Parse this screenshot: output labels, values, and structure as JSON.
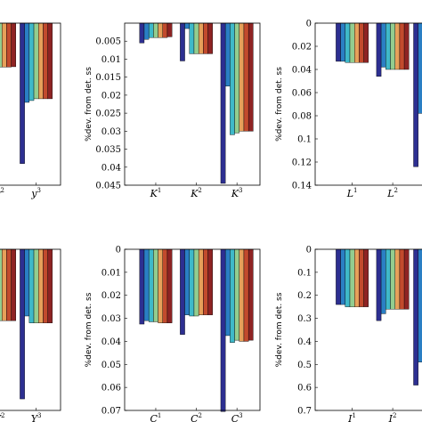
{
  "palette": [
    "#2d2f91",
    "#2a7fc4",
    "#3fb9c9",
    "#93cd8f",
    "#e6a05a",
    "#c24a2d",
    "#8e2323"
  ],
  "chart_data": [
    {
      "type": "bar",
      "axis_visible": false,
      "invert_y": true,
      "ylim": [
        0,
        0.045
      ],
      "ylabel": "",
      "categories": [
        {
          "base": "y",
          "sup": "2"
        },
        {
          "base": "y",
          "sup": "3"
        }
      ],
      "series": [
        {
          "values": [
            0.012,
            0.039
          ]
        },
        {
          "values": [
            0.012,
            0.022
          ]
        },
        {
          "values": [
            0.012,
            0.0215
          ]
        },
        {
          "values": [
            0.0122,
            0.021
          ]
        },
        {
          "values": [
            0.0122,
            0.021
          ]
        },
        {
          "values": [
            0.0122,
            0.021
          ]
        },
        {
          "values": [
            0.0121,
            0.021
          ]
        }
      ]
    },
    {
      "type": "bar",
      "invert_y": true,
      "ylim": [
        0,
        0.045
      ],
      "ylabel": "%dev. from det. ss",
      "yticks": [
        "0.005",
        "0.01",
        "0.015",
        "0.02",
        "0.025",
        "0.03",
        "0.035",
        "0.04",
        "0.045"
      ],
      "categories": [
        {
          "base": "K",
          "sup": "1"
        },
        {
          "base": "K",
          "sup": "2"
        },
        {
          "base": "K",
          "sup": "3"
        }
      ],
      "series": [
        {
          "values": [
            0.0055,
            0.0105,
            0.0445
          ]
        },
        {
          "values": [
            0.0045,
            0.0015,
            0.0175
          ]
        },
        {
          "values": [
            0.004,
            0.0085,
            0.031
          ]
        },
        {
          "values": [
            0.004,
            0.0085,
            0.0305
          ]
        },
        {
          "values": [
            0.004,
            0.0085,
            0.03
          ]
        },
        {
          "values": [
            0.004,
            0.0085,
            0.03
          ]
        },
        {
          "values": [
            0.0038,
            0.0085,
            0.03
          ]
        }
      ]
    },
    {
      "type": "bar",
      "invert_y": true,
      "ylim": [
        0,
        0.14
      ],
      "ylabel": "%dev. from det. ss",
      "yticks": [
        "0",
        "0.02",
        "0.04",
        "0.06",
        "0.08",
        "0.1",
        "0.12",
        "0.14"
      ],
      "categories": [
        {
          "base": "L",
          "sup": "1"
        },
        {
          "base": "L",
          "sup": "2"
        },
        {
          "base": "",
          "sup": ""
        }
      ],
      "series": [
        {
          "values": [
            0.033,
            0.046,
            0.124
          ]
        },
        {
          "values": [
            0.033,
            0.038,
            0.078
          ]
        },
        {
          "values": [
            0.034,
            0.04,
            0.078
          ]
        },
        {
          "values": [
            0.034,
            0.04,
            0.078
          ]
        },
        {
          "values": [
            0.034,
            0.04,
            0.078
          ]
        },
        {
          "values": [
            0.034,
            0.04,
            0.078
          ]
        },
        {
          "values": [
            0.034,
            0.04,
            0.078
          ]
        }
      ]
    },
    {
      "type": "bar",
      "axis_visible": false,
      "invert_y": true,
      "ylim": [
        0,
        0.07
      ],
      "ylabel": "",
      "categories": [
        {
          "base": "Y",
          "sup": "2"
        },
        {
          "base": "Y",
          "sup": "3"
        }
      ],
      "series": [
        {
          "values": [
            0.03,
            0.065
          ]
        },
        {
          "values": [
            0.03,
            0.029
          ]
        },
        {
          "values": [
            0.031,
            0.032
          ]
        },
        {
          "values": [
            0.031,
            0.032
          ]
        },
        {
          "values": [
            0.031,
            0.032
          ]
        },
        {
          "values": [
            0.031,
            0.032
          ]
        },
        {
          "values": [
            0.031,
            0.032
          ]
        }
      ]
    },
    {
      "type": "bar",
      "invert_y": true,
      "ylim": [
        0,
        0.07
      ],
      "ylabel": "%dev. from det. ss",
      "yticks": [
        "0",
        "0.01",
        "0.02",
        "0.03",
        "0.04",
        "0.05",
        "0.06",
        "0.07"
      ],
      "categories": [
        {
          "base": "C",
          "sup": "1"
        },
        {
          "base": "C",
          "sup": "2"
        },
        {
          "base": "C",
          "sup": "3"
        }
      ],
      "series": [
        {
          "values": [
            0.0325,
            0.037,
            0.0705
          ]
        },
        {
          "values": [
            0.031,
            0.0285,
            0.0375
          ]
        },
        {
          "values": [
            0.0315,
            0.029,
            0.0405
          ]
        },
        {
          "values": [
            0.0315,
            0.029,
            0.0395
          ]
        },
        {
          "values": [
            0.032,
            0.0285,
            0.04
          ]
        },
        {
          "values": [
            0.032,
            0.0285,
            0.04
          ]
        },
        {
          "values": [
            0.032,
            0.0285,
            0.0395
          ]
        }
      ]
    },
    {
      "type": "bar",
      "invert_y": true,
      "ylim": [
        0,
        0.7
      ],
      "ylabel": "%dev. from det. ss",
      "yticks": [
        "0",
        "0.1",
        "0.2",
        "0.3",
        "0.4",
        "0.5",
        "0.6",
        "0.7"
      ],
      "categories": [
        {
          "base": "I",
          "sup": "1"
        },
        {
          "base": "I",
          "sup": "2"
        },
        {
          "base": "",
          "sup": ""
        }
      ],
      "series": [
        {
          "values": [
            0.24,
            0.31,
            0.59
          ]
        },
        {
          "values": [
            0.24,
            0.28,
            0.49
          ]
        },
        {
          "values": [
            0.25,
            0.26,
            0.49
          ]
        },
        {
          "values": [
            0.25,
            0.26,
            0.49
          ]
        },
        {
          "values": [
            0.25,
            0.26,
            0.49
          ]
        },
        {
          "values": [
            0.25,
            0.26,
            0.49
          ]
        },
        {
          "values": [
            0.25,
            0.26,
            0.49
          ]
        }
      ]
    }
  ]
}
